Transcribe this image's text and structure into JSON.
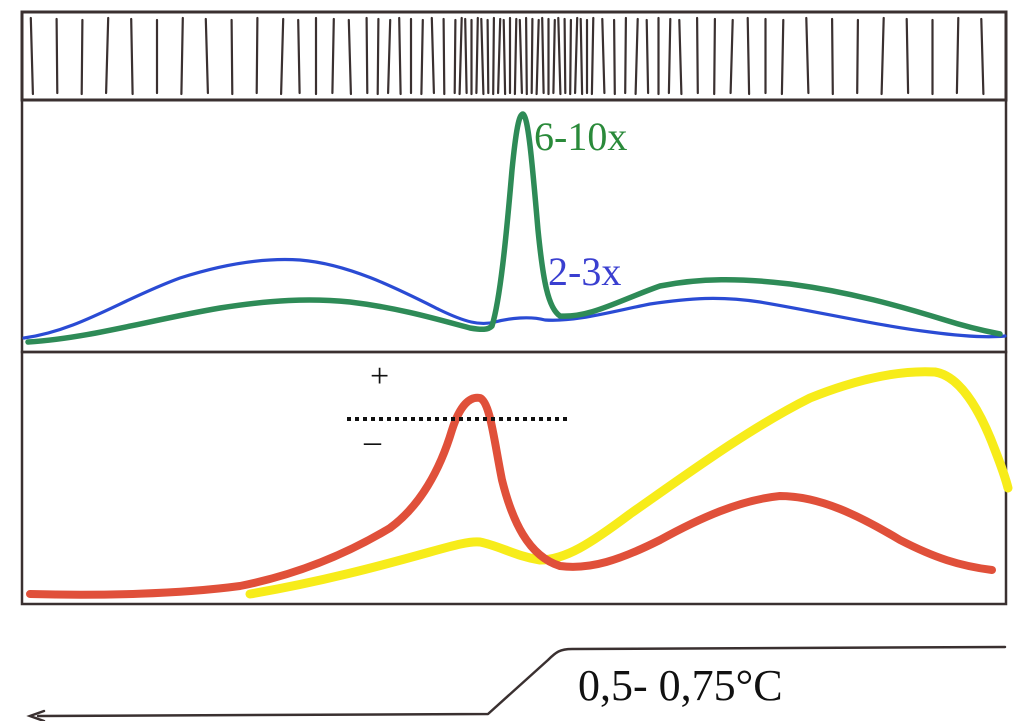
{
  "annotations": {
    "estrogen_peak_label": "6-10x",
    "fsh_peak_label": "2-3x",
    "plus_sign": "+",
    "minus_sign": "–",
    "temperature_rise_label": "0,5- 0,75°C"
  },
  "colors": {
    "outline": "#3a3030",
    "green_curve": "#2e8b57",
    "blue_curve": "#2a4bd4",
    "red_curve": "#e0503a",
    "yellow_curve": "#f7ec1a",
    "green_text": "#2a8a3a",
    "blue_text": "#3a3fd0",
    "dotted_line": "#111111"
  },
  "icons": {
    "hatch_band": "vertical-stroke-bar"
  }
}
